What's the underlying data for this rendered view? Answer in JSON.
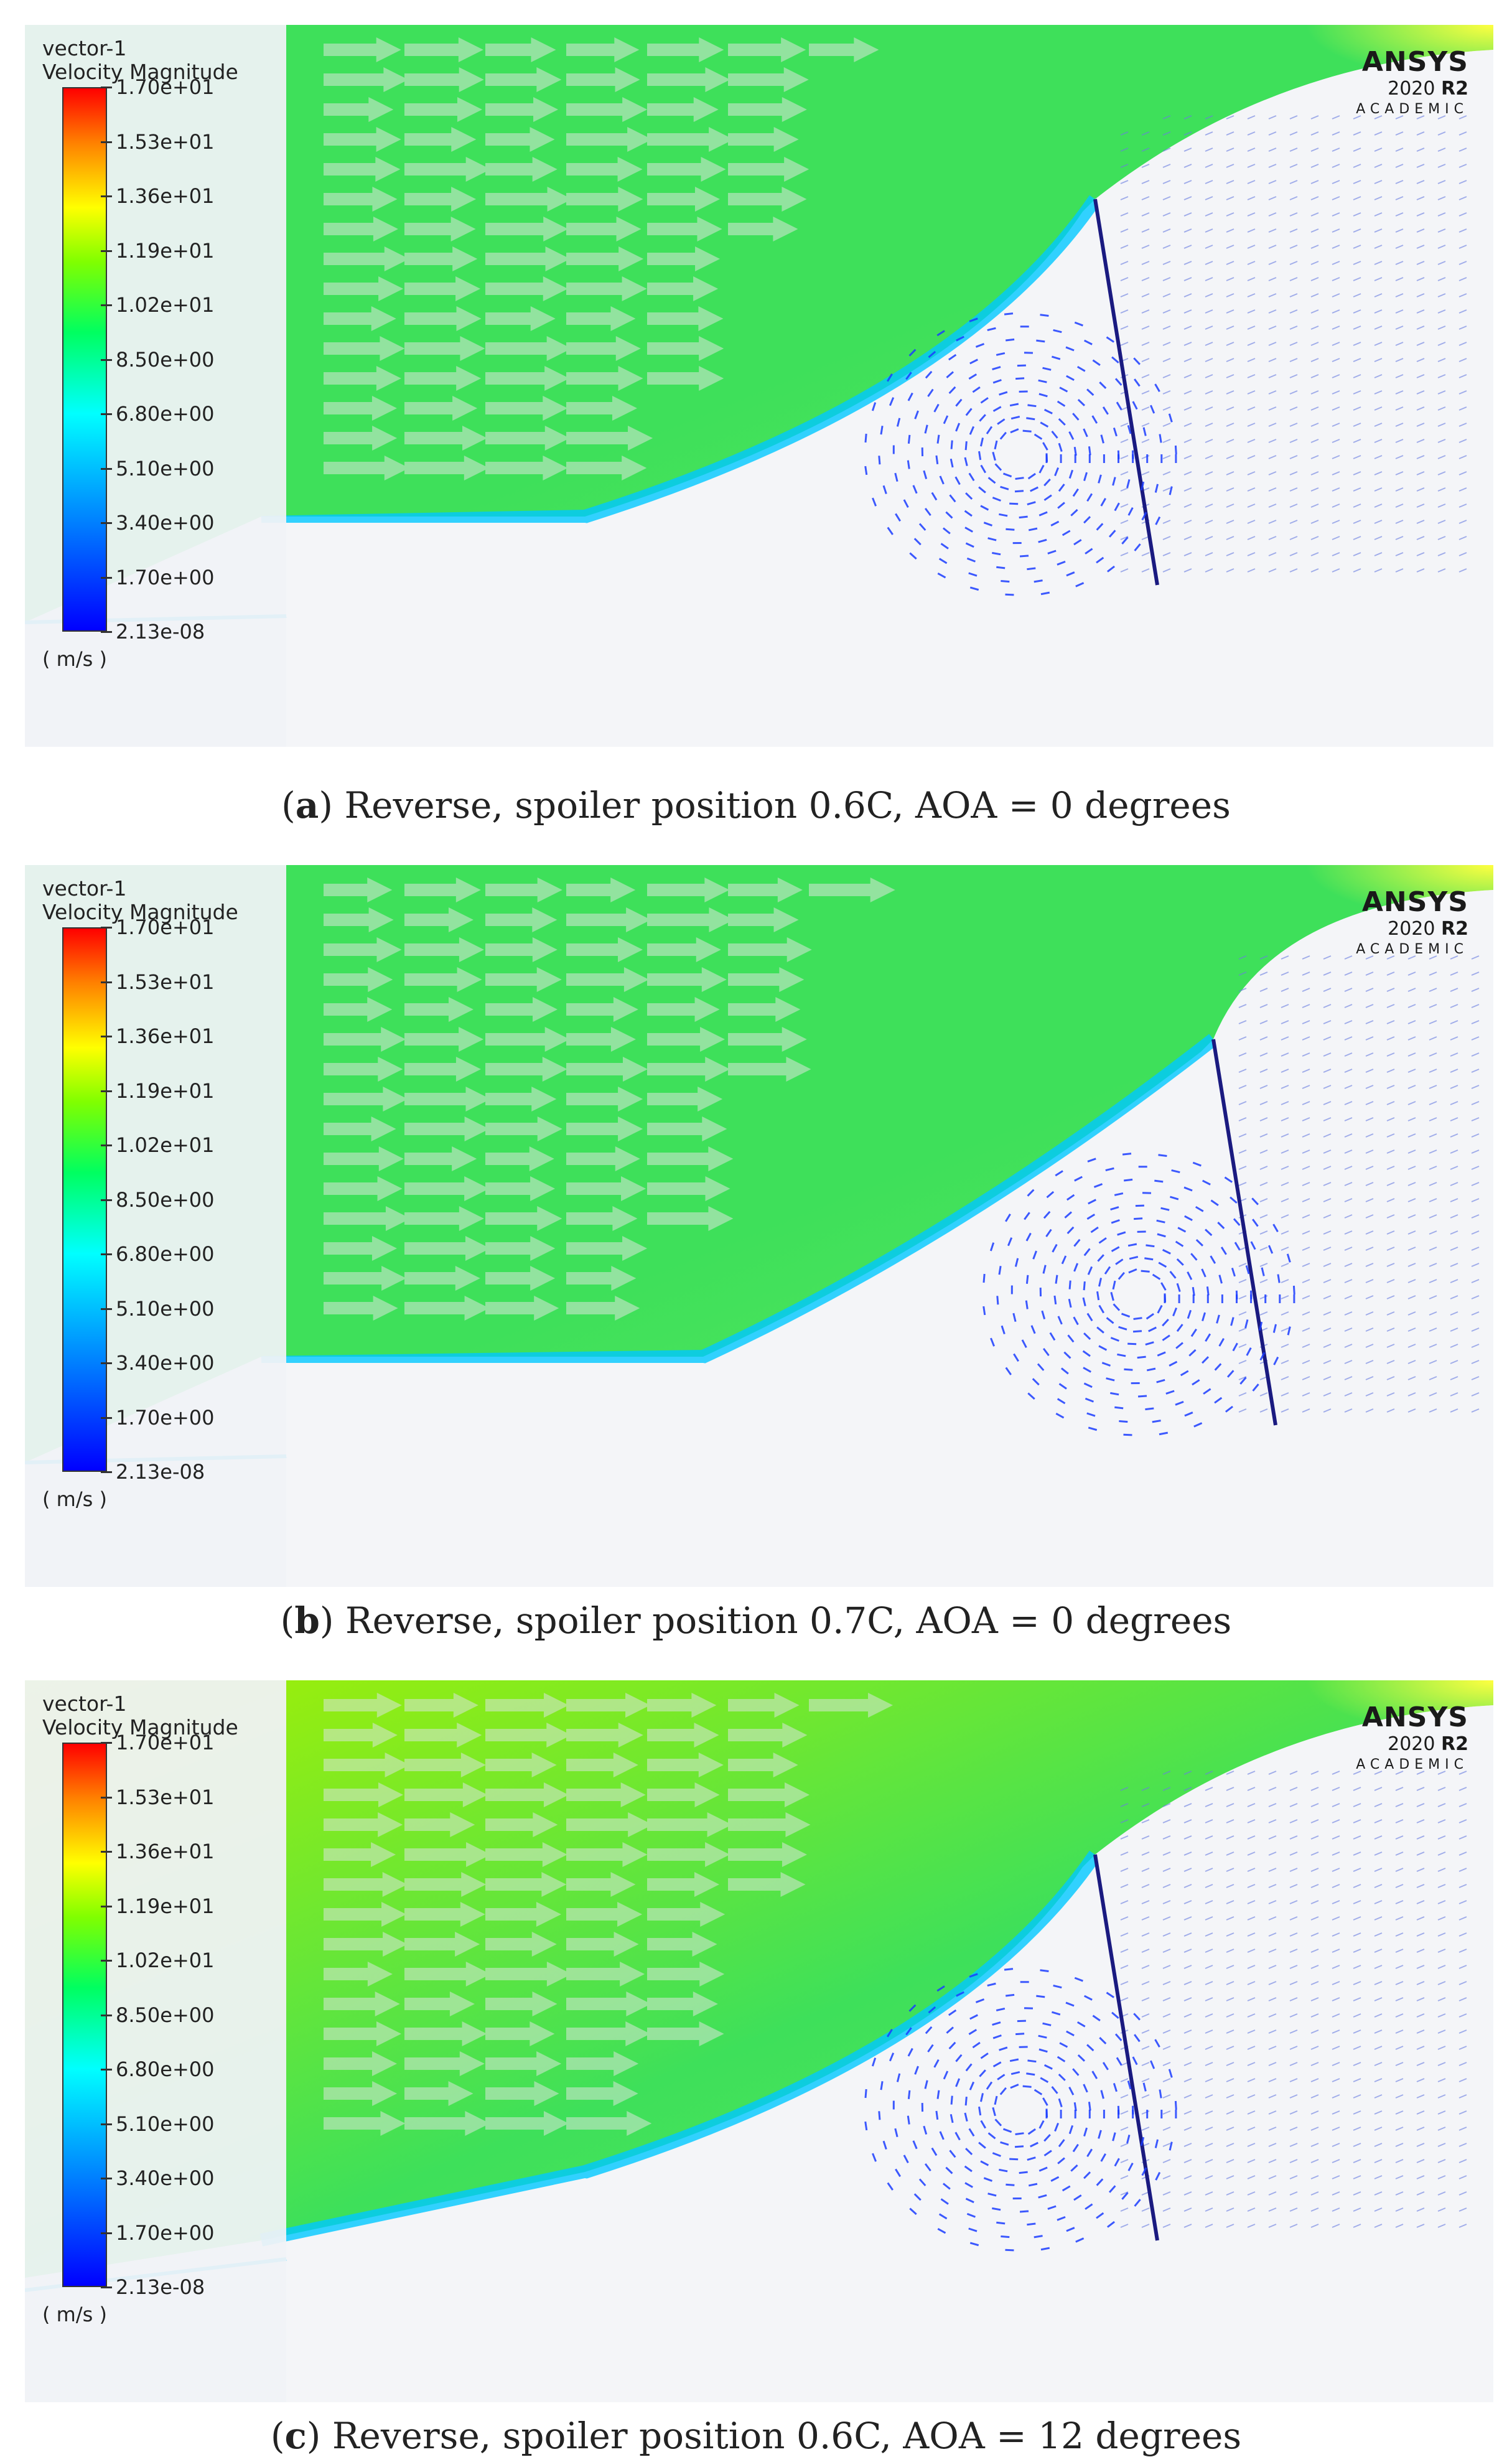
{
  "legend": {
    "name": "vector-1",
    "quantity": "Velocity Magnitude",
    "ticks": [
      "1.70e+01",
      "1.53e+01",
      "1.36e+01",
      "1.19e+01",
      "1.02e+01",
      "8.50e+00",
      "6.80e+00",
      "5.10e+00",
      "3.40e+00",
      "1.70e+00",
      "2.13e-08"
    ],
    "unit": "( m/s )"
  },
  "brand": {
    "name": "ANSYS",
    "version": "2020",
    "release": "R2",
    "edition": "ACADEMIC"
  },
  "panels": [
    {
      "id": "a",
      "letter": "a",
      "caption": "Reverse, spoiler position 0.6C, AOA = 0 degrees",
      "aoa_deg": 0
    },
    {
      "id": "b",
      "letter": "b",
      "caption": "Reverse, spoiler position 0.7C, AOA = 0 degrees",
      "aoa_deg": 0
    },
    {
      "id": "c",
      "letter": "c",
      "caption": "Reverse, spoiler position 0.6C, AOA = 12 degrees",
      "aoa_deg": 12
    }
  ],
  "colors": {
    "free_stream": "#3ee05a",
    "upper_flow": "#a8f000",
    "shear_layer": "#00c8ff",
    "recirculation": "#1a3cff",
    "airfoil_vectors": "#6a7de0"
  }
}
